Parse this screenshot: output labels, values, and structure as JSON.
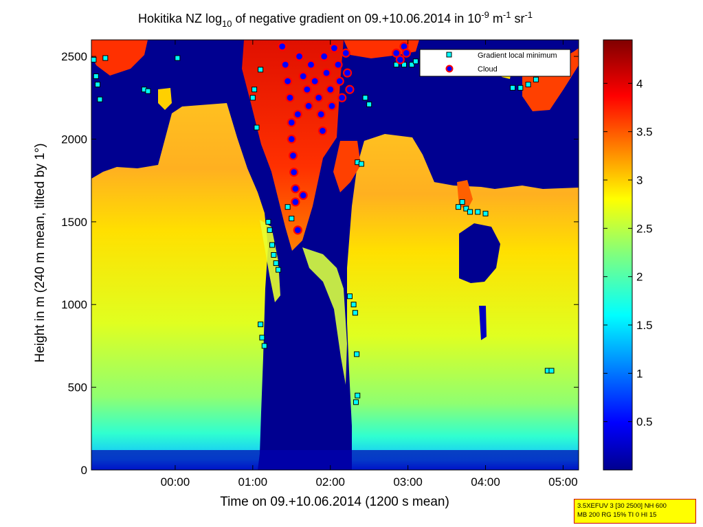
{
  "chart_data": {
    "type": "heatmap",
    "title": {
      "prefix": "Hokitika NZ log",
      "sub": "10",
      "mid": " of negative gradient on 09.+10.06.2014 in 10",
      "sup1": "-9",
      "mid2": " m",
      "sup2": "-1",
      "mid3": " sr",
      "sup3": "-1"
    },
    "xlabel": "Time on 09.+10.06.2014 (1200 s mean)",
    "ylabel": "Height in m (240 m mean, tilted by 1°)",
    "x_ticks": [
      "00:00",
      "01:00",
      "02:00",
      "03:00",
      "04:00",
      "05:00"
    ],
    "x_tick_hours": [
      0,
      1,
      2,
      3,
      4,
      5
    ],
    "xlim_hours": [
      -1.08,
      5.2
    ],
    "y_ticks": [
      0,
      500,
      1000,
      1500,
      2000,
      2500
    ],
    "ylim": [
      0,
      2600
    ],
    "colorbar": {
      "ticks": [
        "0.5",
        "1",
        "1.5",
        "2",
        "2.5",
        "3",
        "3.5",
        "4"
      ],
      "tick_values": [
        0.5,
        1,
        1.5,
        2,
        2.5,
        3,
        3.5,
        4
      ],
      "range": [
        0,
        4.45
      ],
      "colormap": "jet"
    },
    "legend": {
      "placement": "top-right",
      "entries": [
        {
          "label": "Gradient local minimum",
          "marker": "square",
          "color": "#00ffff"
        },
        {
          "label": "Cloud",
          "marker": "circle",
          "color": "#0000ff"
        }
      ]
    },
    "regions": [
      {
        "name": "aerosol layer before 01:20",
        "x_hours": [
          -1.08,
          1.3
        ],
        "top_m": [
          1700,
          2150
        ],
        "value": 2.7
      },
      {
        "name": "clear gap 01:20-02:20",
        "x_hours": [
          1.3,
          2.35
        ],
        "value": 0.1
      },
      {
        "name": "aerosol layer after 02:30",
        "x_hours": [
          2.4,
          5.2
        ],
        "top_m": [
          1700,
          1900
        ],
        "value": 2.6
      },
      {
        "name": "cloud region",
        "x_hours": [
          1.5,
          2.3
        ],
        "bottom_m": [
          1400,
          2600
        ],
        "value": 4.0
      }
    ],
    "gradient_local_minimum": [
      {
        "t": -1.05,
        "h": 2480
      },
      {
        "t": -1.02,
        "h": 2380
      },
      {
        "t": -1.0,
        "h": 2330
      },
      {
        "t": -0.97,
        "h": 2240
      },
      {
        "t": -0.9,
        "h": 2490
      },
      {
        "t": -0.4,
        "h": 2300
      },
      {
        "t": -0.35,
        "h": 2290
      },
      {
        "t": 0.03,
        "h": 2490
      },
      {
        "t": 1.05,
        "h": 2070
      },
      {
        "t": 1.1,
        "h": 880
      },
      {
        "t": 1.12,
        "h": 800
      },
      {
        "t": 1.15,
        "h": 750
      },
      {
        "t": 1.25,
        "h": 1360
      },
      {
        "t": 1.27,
        "h": 1300
      },
      {
        "t": 1.3,
        "h": 1250
      },
      {
        "t": 1.33,
        "h": 1210
      },
      {
        "t": 1.2,
        "h": 1500
      },
      {
        "t": 1.22,
        "h": 1450
      },
      {
        "t": 1.5,
        "h": 1520
      },
      {
        "t": 1.45,
        "h": 1590
      },
      {
        "t": 1.55,
        "h": 1700
      },
      {
        "t": 1.0,
        "h": 2250
      },
      {
        "t": 1.02,
        "h": 2300
      },
      {
        "t": 1.1,
        "h": 2420
      },
      {
        "t": 2.25,
        "h": 1050
      },
      {
        "t": 2.3,
        "h": 1000
      },
      {
        "t": 2.32,
        "h": 950
      },
      {
        "t": 2.34,
        "h": 700
      },
      {
        "t": 2.35,
        "h": 450
      },
      {
        "t": 2.33,
        "h": 410
      },
      {
        "t": 2.35,
        "h": 1860
      },
      {
        "t": 2.4,
        "h": 1850
      },
      {
        "t": 2.45,
        "h": 2250
      },
      {
        "t": 2.5,
        "h": 2210
      },
      {
        "t": 2.85,
        "h": 2450
      },
      {
        "t": 2.95,
        "h": 2450
      },
      {
        "t": 3.05,
        "h": 2450
      },
      {
        "t": 3.1,
        "h": 2470
      },
      {
        "t": 3.65,
        "h": 1590
      },
      {
        "t": 3.7,
        "h": 1620
      },
      {
        "t": 3.75,
        "h": 1580
      },
      {
        "t": 3.8,
        "h": 1560
      },
      {
        "t": 3.9,
        "h": 1560
      },
      {
        "t": 4.0,
        "h": 1550
      },
      {
        "t": 4.35,
        "h": 2310
      },
      {
        "t": 4.45,
        "h": 2310
      },
      {
        "t": 4.55,
        "h": 2330
      },
      {
        "t": 4.65,
        "h": 2360
      },
      {
        "t": 4.8,
        "h": 600
      },
      {
        "t": 4.85,
        "h": 600
      }
    ],
    "cloud": [
      {
        "t": 1.38,
        "h": 2560
      },
      {
        "t": 1.42,
        "h": 2450
      },
      {
        "t": 1.45,
        "h": 2350
      },
      {
        "t": 1.48,
        "h": 2250
      },
      {
        "t": 1.5,
        "h": 2100
      },
      {
        "t": 1.5,
        "h": 2000
      },
      {
        "t": 1.52,
        "h": 1900
      },
      {
        "t": 1.53,
        "h": 1800
      },
      {
        "t": 1.55,
        "h": 1700
      },
      {
        "t": 1.55,
        "h": 1620
      },
      {
        "t": 1.58,
        "h": 2150
      },
      {
        "t": 1.6,
        "h": 2500
      },
      {
        "t": 1.65,
        "h": 2380
      },
      {
        "t": 1.7,
        "h": 2300
      },
      {
        "t": 1.72,
        "h": 2200
      },
      {
        "t": 1.75,
        "h": 2450
      },
      {
        "t": 1.8,
        "h": 2350
      },
      {
        "t": 1.85,
        "h": 2250
      },
      {
        "t": 1.88,
        "h": 2150
      },
      {
        "t": 1.9,
        "h": 2050
      },
      {
        "t": 1.92,
        "h": 2500
      },
      {
        "t": 1.95,
        "h": 2400
      },
      {
        "t": 2.0,
        "h": 2300
      },
      {
        "t": 2.02,
        "h": 2200
      },
      {
        "t": 2.05,
        "h": 2550
      },
      {
        "t": 2.1,
        "h": 2450
      },
      {
        "t": 2.12,
        "h": 2350
      },
      {
        "t": 2.15,
        "h": 2250
      },
      {
        "t": 2.2,
        "h": 2520
      },
      {
        "t": 2.22,
        "h": 2400
      },
      {
        "t": 2.25,
        "h": 2300
      },
      {
        "t": 1.58,
        "h": 1450
      },
      {
        "t": 1.65,
        "h": 1660
      },
      {
        "t": 2.85,
        "h": 2520
      },
      {
        "t": 2.9,
        "h": 2480
      },
      {
        "t": 2.95,
        "h": 2560
      },
      {
        "t": 2.98,
        "h": 2520
      }
    ]
  },
  "colors": {
    "background": "#000080",
    "cloud_marker_fill": "#0000ff",
    "cloud_marker_edge": "#ff0000",
    "minimum_marker_fill": "#00ffff",
    "minimum_marker_edge": "#000000"
  },
  "info_box": {
    "line1": "3.5XEFUV 3 [30 2500] NH 600",
    "line2": "MB 200 RG 15% TI 0 HI 15"
  }
}
